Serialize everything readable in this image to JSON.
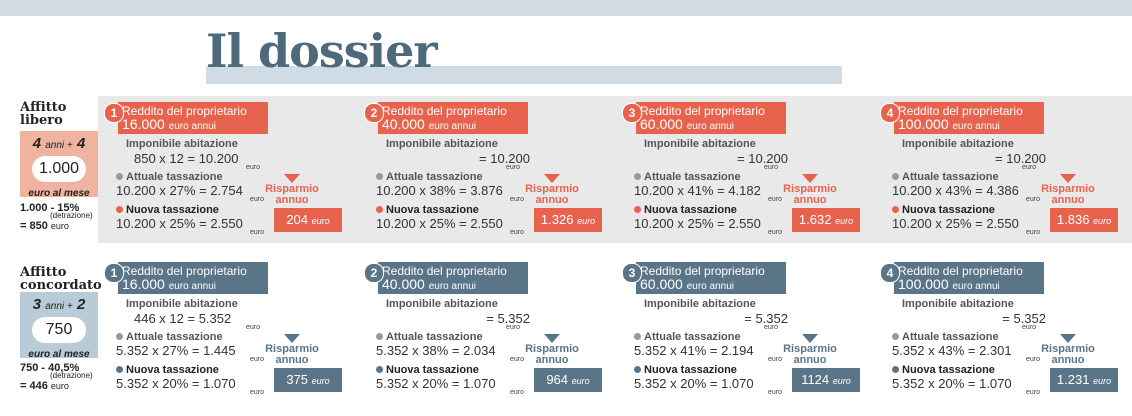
{
  "title": "Il dossier",
  "libero": {
    "heading_line1": "Affitto",
    "heading_line2": "libero",
    "years_a": "4",
    "years_sep": "anni +",
    "years_b": "4",
    "rent": "1.000",
    "per_month": "euro al mese",
    "calc_line1": "1.000 - 15%",
    "calc_note": "(detrazione)",
    "calc_line2": "= 850",
    "calc_unit": "euro",
    "blocks": [
      {
        "n": "1",
        "title": "Reddito del proprietario",
        "income": "16.000",
        "income_unit": "euro annui",
        "imp_label": "Imponibile abitazione",
        "imp_calc": "850   x   12 = 10.200",
        "euro": "euro",
        "att_label": "Attuale tassazione",
        "att_calc": "10.200  x  27% = 2.754",
        "nuova_label": "Nuova tassazione",
        "nuova_calc": "10.200  x  25% = 2.550",
        "risp1": "Risparmio",
        "risp2": "annuo",
        "saving": "204",
        "saving_unit": "euro"
      },
      {
        "n": "2",
        "title": "Reddito del proprietario",
        "income": "40.000",
        "income_unit": "euro annui",
        "imp_label": "Imponibile abitazione",
        "imp_calc": "= 10.200",
        "euro": "euro",
        "att_label": "Attuale tassazione",
        "att_calc": "10.200  x  38% = 3.876",
        "nuova_label": "Nuova tassazione",
        "nuova_calc": "10.200  x  25% = 2.550",
        "risp1": "Risparmio",
        "risp2": "annuo",
        "saving": "1.326",
        "saving_unit": "euro"
      },
      {
        "n": "3",
        "title": "Reddito del proprietario",
        "income": "60.000",
        "income_unit": "euro annui",
        "imp_label": "Imponibile abitazione",
        "imp_calc": "= 10.200",
        "euro": "euro",
        "att_label": "Attuale tassazione",
        "att_calc": "10.200  x  41% = 4.182",
        "nuova_label": "Nuova tassazione",
        "nuova_calc": "10.200  x  25% = 2.550",
        "risp1": "Risparmio",
        "risp2": "annuo",
        "saving": "1.632",
        "saving_unit": "euro"
      },
      {
        "n": "4",
        "title": "Reddito del proprietario",
        "income": "100.000",
        "income_unit": "euro annui",
        "imp_label": "Imponibile abitazione",
        "imp_calc": "= 10.200",
        "euro": "euro",
        "att_label": "Attuale tassazione",
        "att_calc": "10.200  x  43% = 4.386",
        "nuova_label": "Nuova tassazione",
        "nuova_calc": "10.200  x  25% = 2.550",
        "risp1": "Risparmio",
        "risp2": "annuo",
        "saving": "1.836",
        "saving_unit": "euro"
      }
    ]
  },
  "concordato": {
    "heading_line1": "Affitto",
    "heading_line2": "concordato",
    "years_a": "3",
    "years_sep": "anni +",
    "years_b": "2",
    "rent": "750",
    "per_month": "euro al mese",
    "calc_line1": "750 - 40,5%",
    "calc_note": "(detrazione)",
    "calc_line2": "= 446",
    "calc_unit": "euro",
    "blocks": [
      {
        "n": "1",
        "title": "Reddito del proprietario",
        "income": "16.000",
        "income_unit": "euro annui",
        "imp_label": "Imponibile abitazione",
        "imp_calc": "446   x   12 = 5.352",
        "euro": "euro",
        "att_label": "Attuale tassazione",
        "att_calc": "5.352  x  27% = 1.445",
        "nuova_label": "Nuova tassazione",
        "nuova_calc": "5.352  x  20% = 1.070",
        "risp1": "Risparmio",
        "risp2": "annuo",
        "saving": "375",
        "saving_unit": "euro"
      },
      {
        "n": "2",
        "title": "Reddito del proprietario",
        "income": "40.000",
        "income_unit": "euro annui",
        "imp_label": "Imponibile abitazione",
        "imp_calc": "= 5.352",
        "euro": "euro",
        "att_label": "Attuale tassazione",
        "att_calc": "5.352  x  38% = 2.034",
        "nuova_label": "Nuova tassazione",
        "nuova_calc": "5.352  x  20% = 1.070",
        "risp1": "Risparmio",
        "risp2": "annuo",
        "saving": "964",
        "saving_unit": "euro"
      },
      {
        "n": "3",
        "title": "Reddito del proprietario",
        "income": "60.000",
        "income_unit": "euro annui",
        "imp_label": "Imponibile abitazione",
        "imp_calc": "= 5.352",
        "euro": "euro",
        "att_label": "Attuale tassazione",
        "att_calc": "5.352  x  41% = 2.194",
        "nuova_label": "Nuova tassazione",
        "nuova_calc": "5.352  x  20% = 1.070",
        "risp1": "Risparmio",
        "risp2": "annuo",
        "saving": "1124",
        "saving_unit": "euro"
      },
      {
        "n": "4",
        "title": "Reddito del proprietario",
        "income": "100.000",
        "income_unit": "euro annui",
        "imp_label": "Imponibile abitazione",
        "imp_calc": "= 5.352",
        "euro": "euro",
        "att_label": "Attuale tassazione",
        "att_calc": "5.352  x  43% = 2.301",
        "nuova_label": "Nuova tassazione",
        "nuova_calc": "5.352  x  20% = 1.070",
        "risp1": "Risparmio",
        "risp2": "annuo",
        "saving": "1.231",
        "saving_unit": "euro"
      }
    ]
  },
  "colors": {
    "libero_accent": "#e8634e",
    "libero_left_box": "#efb3a0",
    "concordato_accent": "#5a7588",
    "concordato_left_box": "#b8cbd6",
    "title": "#4d6a7c"
  }
}
